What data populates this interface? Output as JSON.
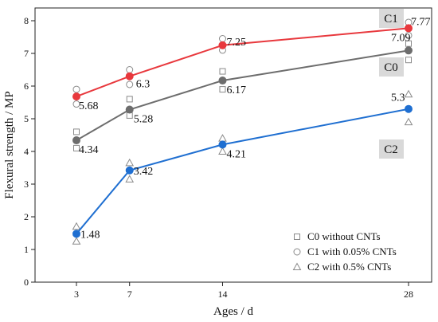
{
  "chart_data": {
    "type": "line",
    "xlabel": "Ages / d",
    "ylabel": "Flexural strength / MP",
    "xlim": [
      0,
      30
    ],
    "ylim": [
      0,
      8.5
    ],
    "x_ticks": [
      3,
      7,
      14,
      28
    ],
    "y_ticks": [
      0,
      1,
      2,
      3,
      4,
      5,
      6,
      7,
      8
    ],
    "grid": false,
    "legend_position": "bottom-right",
    "series": [
      {
        "name": "C0 without CNTs",
        "tag": "C0",
        "color": "#6d6d6d",
        "marker": "square",
        "x": [
          3,
          7,
          14,
          28
        ],
        "values": [
          4.34,
          5.28,
          6.17,
          7.09
        ],
        "scatter": [
          [
            3,
            4.6
          ],
          [
            3,
            4.1
          ],
          [
            7,
            5.6
          ],
          [
            7,
            5.1
          ],
          [
            14,
            6.45
          ],
          [
            14,
            5.9
          ],
          [
            28,
            7.3
          ],
          [
            28,
            6.8
          ]
        ]
      },
      {
        "name": "C1 with 0.05% CNTs",
        "tag": "C1",
        "color": "#e8383d",
        "marker": "circle",
        "x": [
          3,
          7,
          14,
          28
        ],
        "values": [
          5.68,
          6.3,
          7.25,
          7.77
        ],
        "scatter": [
          [
            3,
            5.9
          ],
          [
            3,
            5.45
          ],
          [
            7,
            6.5
          ],
          [
            7,
            6.05
          ],
          [
            14,
            7.45
          ],
          [
            14,
            7.1
          ],
          [
            28,
            7.95
          ],
          [
            28,
            7.55
          ]
        ]
      },
      {
        "name": "C2 with 0.5% CNTs",
        "tag": "C2",
        "color": "#1f6fd1",
        "marker": "triangle",
        "x": [
          3,
          7,
          14,
          28
        ],
        "values": [
          1.48,
          3.42,
          4.21,
          5.3
        ],
        "scatter": [
          [
            3,
            1.7
          ],
          [
            3,
            1.25
          ],
          [
            7,
            3.65
          ],
          [
            7,
            3.15
          ],
          [
            14,
            4.4
          ],
          [
            14,
            4.0
          ],
          [
            28,
            5.75
          ],
          [
            28,
            4.9
          ]
        ]
      }
    ],
    "data_labels": [
      {
        "text": "1.48",
        "x": 3,
        "y": 1.48
      },
      {
        "text": "3.42",
        "x": 7,
        "y": 3.42
      },
      {
        "text": "4.21",
        "x": 14,
        "y": 4.21
      },
      {
        "text": "5.3",
        "x": 28,
        "y": 5.3
      },
      {
        "text": "4.34",
        "x": 3,
        "y": 4.34
      },
      {
        "text": "5.28",
        "x": 7,
        "y": 5.28
      },
      {
        "text": "6.17",
        "x": 14,
        "y": 6.17
      },
      {
        "text": "7.09",
        "x": 28,
        "y": 7.09
      },
      {
        "text": "5.68",
        "x": 3,
        "y": 5.68
      },
      {
        "text": "6.3",
        "x": 7,
        "y": 6.3
      },
      {
        "text": "7.25",
        "x": 14,
        "y": 7.25
      },
      {
        "text": "7.77",
        "x": 28,
        "y": 7.77
      }
    ]
  }
}
